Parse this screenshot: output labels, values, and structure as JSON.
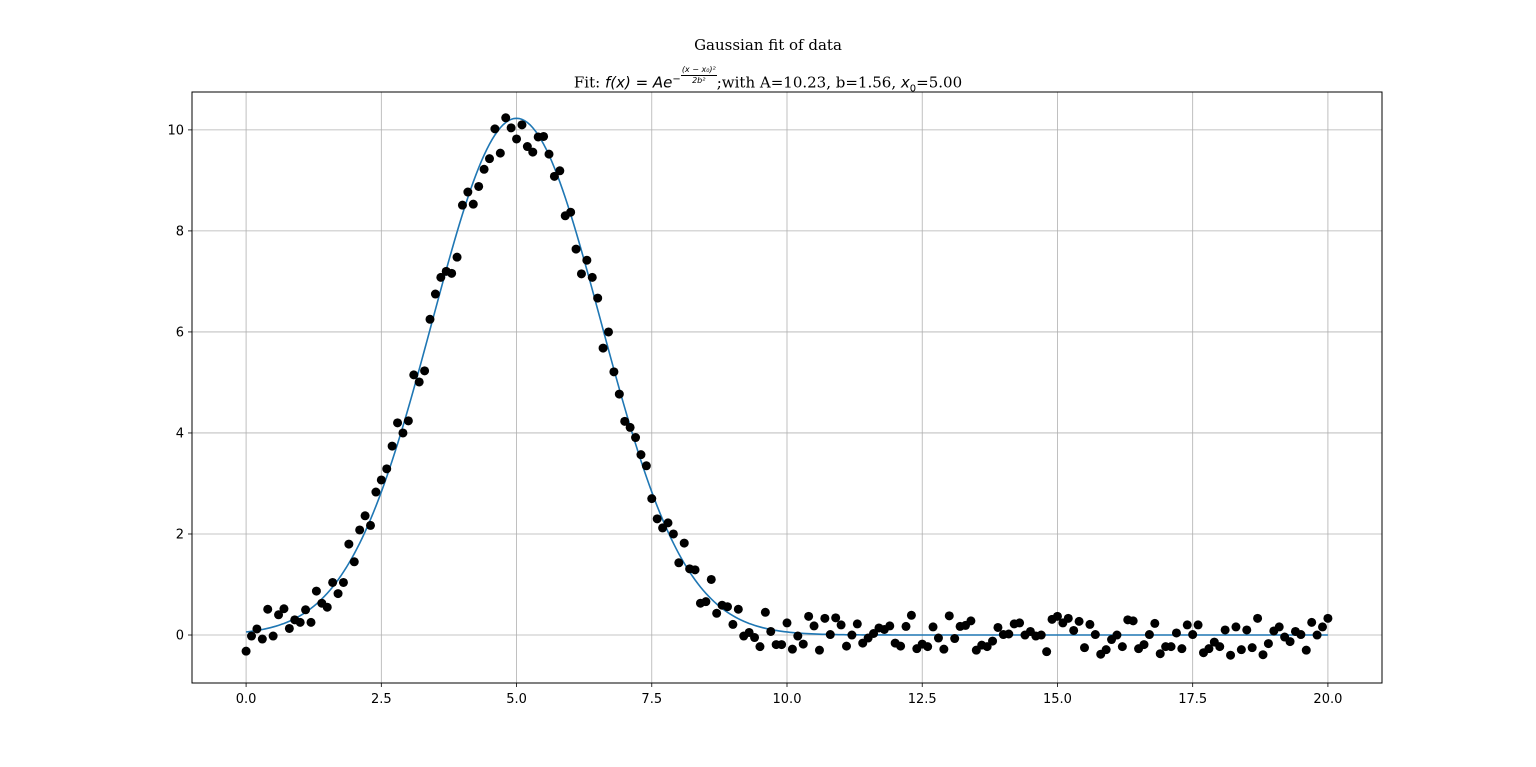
{
  "chart_data": {
    "type": "scatter",
    "title": "Gaussian fit of data",
    "subtitle": {
      "prefix": "Fit: ",
      "formula": "f(x) = Ae",
      "exponent_numerator": "(x − x₀)²",
      "exponent_denominator": "2b²",
      "suffix_text": ";with A=10.23, b=1.56, ",
      "x0_label": "x",
      "x0_sub": "0",
      "x0_value": "=5.00"
    },
    "xlabel": "",
    "ylabel": "",
    "xlim": [
      -1.0,
      21.0
    ],
    "ylim": [
      -0.95,
      10.75
    ],
    "xticks": [
      0.0,
      2.5,
      5.0,
      7.5,
      10.0,
      12.5,
      15.0,
      17.5,
      20.0
    ],
    "xtick_labels": [
      "0.0",
      "2.5",
      "5.0",
      "7.5",
      "10.0",
      "12.5",
      "15.0",
      "17.5",
      "20.0"
    ],
    "yticks": [
      0,
      2,
      4,
      6,
      8,
      10
    ],
    "ytick_labels": [
      "0",
      "2",
      "4",
      "6",
      "8",
      "10"
    ],
    "grid": true,
    "fit": {
      "A": 10.23,
      "b": 1.56,
      "x0": 5.0,
      "x_range": [
        0,
        20
      ],
      "color": "#1f77b4"
    },
    "points_color": "#000000",
    "x": [
      0.0,
      0.1,
      0.2,
      0.3,
      0.4,
      0.5,
      0.6,
      0.7,
      0.8,
      0.9,
      1.0,
      1.1,
      1.2,
      1.3,
      1.4,
      1.5,
      1.6,
      1.7,
      1.8,
      1.9,
      2.0,
      2.1,
      2.2,
      2.3,
      2.4,
      2.5,
      2.6,
      2.7,
      2.8,
      2.9,
      3.0,
      3.1,
      3.2,
      3.3,
      3.4,
      3.5,
      3.6,
      3.7,
      3.8,
      3.9,
      4.0,
      4.1,
      4.2,
      4.3,
      4.4,
      4.5,
      4.6,
      4.7,
      4.8,
      4.9,
      5.0,
      5.1,
      5.2,
      5.3,
      5.4,
      5.5,
      5.6,
      5.7,
      5.8,
      5.9,
      6.0,
      6.1,
      6.2,
      6.3,
      6.4,
      6.5,
      6.6,
      6.7,
      6.8,
      6.9,
      7.0,
      7.1,
      7.2,
      7.3,
      7.4,
      7.5,
      7.6,
      7.7,
      7.8,
      7.9,
      8.0,
      8.1,
      8.2,
      8.3,
      8.4,
      8.5,
      8.6,
      8.7,
      8.8,
      8.9,
      9.0,
      9.1,
      9.2,
      9.3,
      9.4,
      9.5,
      9.6,
      9.7,
      9.8,
      9.9,
      10.0,
      10.1,
      10.2,
      10.3,
      10.4,
      10.5,
      10.6,
      10.7,
      10.8,
      10.9,
      11.0,
      11.1,
      11.2,
      11.3,
      11.4,
      11.5,
      11.6,
      11.7,
      11.8,
      11.9,
      12.0,
      12.1,
      12.2,
      12.3,
      12.4,
      12.5,
      12.6,
      12.7,
      12.8,
      12.9,
      13.0,
      13.1,
      13.2,
      13.3,
      13.4,
      13.5,
      13.6,
      13.7,
      13.8,
      13.9,
      14.0,
      14.1,
      14.2,
      14.3,
      14.4,
      14.5,
      14.6,
      14.7,
      14.8,
      14.9,
      15.0,
      15.1,
      15.2,
      15.3,
      15.4,
      15.5,
      15.6,
      15.7,
      15.8,
      15.9,
      16.0,
      16.1,
      16.2,
      16.3,
      16.4,
      16.5,
      16.6,
      16.7,
      16.8,
      16.9,
      17.0,
      17.1,
      17.2,
      17.3,
      17.4,
      17.5,
      17.6,
      17.7,
      17.8,
      17.9,
      18.0,
      18.1,
      18.2,
      18.3,
      18.4,
      18.5,
      18.6,
      18.7,
      18.8,
      18.9,
      19.0,
      19.1,
      19.2,
      19.3,
      19.4,
      19.5,
      19.6,
      19.7,
      19.8,
      19.9,
      20.0
    ],
    "y": [
      -0.32,
      -0.02,
      0.12,
      -0.08,
      0.51,
      -0.02,
      0.4,
      0.52,
      0.13,
      0.3,
      0.25,
      0.5,
      0.25,
      0.87,
      0.63,
      0.55,
      1.04,
      0.82,
      1.04,
      1.8,
      1.45,
      2.08,
      2.36,
      2.17,
      2.83,
      3.07,
      3.29,
      3.74,
      4.2,
      4.0,
      4.24,
      5.15,
      5.01,
      5.23,
      6.25,
      6.75,
      7.08,
      7.2,
      7.16,
      7.48,
      8.51,
      8.77,
      8.53,
      8.88,
      9.22,
      9.43,
      10.02,
      9.54,
      10.24,
      10.04,
      9.82,
      10.1,
      9.67,
      9.56,
      9.86,
      9.87,
      9.52,
      9.08,
      9.19,
      8.3,
      8.37,
      7.64,
      7.15,
      7.42,
      7.08,
      6.67,
      5.68,
      6.0,
      5.21,
      4.77,
      4.23,
      4.11,
      3.91,
      3.57,
      3.35,
      2.7,
      2.3,
      2.12,
      2.22,
      2.0,
      1.43,
      1.82,
      1.31,
      1.29,
      0.63,
      0.66,
      1.1,
      0.43,
      0.59,
      0.56,
      0.21,
      0.51,
      -0.02,
      0.05,
      -0.05,
      -0.23,
      0.45,
      0.07,
      -0.19,
      -0.19,
      0.24,
      -0.28,
      -0.02,
      -0.18,
      0.37,
      0.18,
      -0.3,
      0.33,
      0.01,
      0.34,
      0.2,
      -0.22,
      0.0,
      0.22,
      -0.16,
      -0.06,
      0.03,
      0.14,
      0.11,
      0.18,
      -0.16,
      -0.22,
      0.17,
      0.39,
      -0.27,
      -0.18,
      -0.23,
      0.16,
      -0.06,
      -0.28,
      0.38,
      -0.07,
      0.17,
      0.19,
      0.28,
      -0.3,
      -0.2,
      -0.23,
      -0.12,
      0.15,
      0.01,
      0.02,
      0.22,
      0.24,
      0.0,
      0.07,
      -0.02,
      0.0,
      -0.33,
      0.31,
      0.37,
      0.24,
      0.33,
      0.09,
      0.27,
      -0.25,
      0.21,
      0.01,
      -0.38,
      -0.29,
      -0.09,
      0.0,
      -0.23,
      0.3,
      0.28,
      -0.27,
      -0.19,
      0.01,
      0.23,
      -0.37,
      -0.23,
      -0.23,
      0.04,
      -0.27,
      0.2,
      0.01,
      0.2,
      -0.35,
      -0.27,
      -0.14,
      -0.23,
      0.1,
      -0.4,
      0.16,
      -0.29,
      0.1,
      -0.25,
      0.33,
      -0.39,
      -0.17,
      0.08,
      0.16,
      -0.04,
      -0.13,
      0.07,
      0.01,
      -0.3,
      0.25,
      0.0,
      0.16,
      0.33
    ]
  }
}
